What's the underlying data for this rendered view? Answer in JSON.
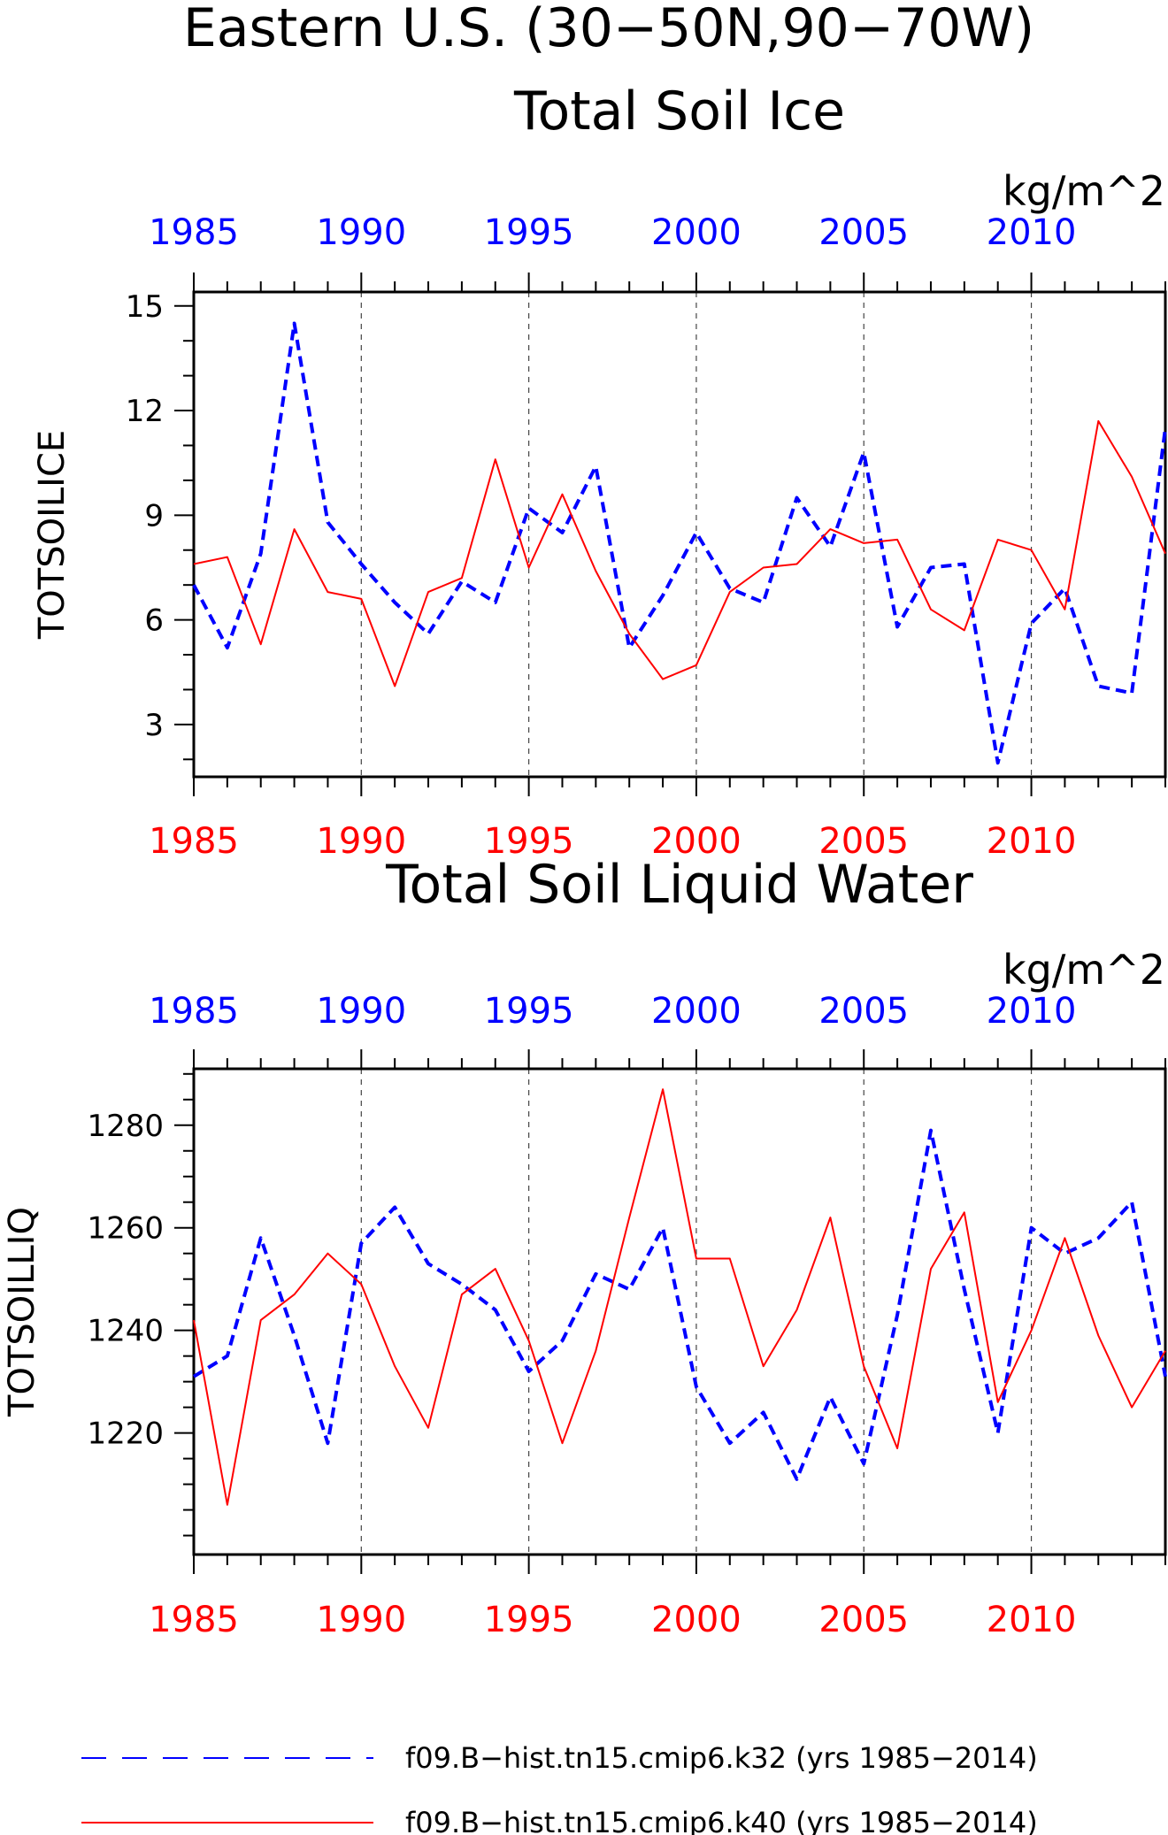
{
  "figure": {
    "title_line1": "Eastern U.S. (30−50N,90−70W)",
    "legend": [
      {
        "label": "f09.B−hist.tn15.cmip6.k32 (yrs 1985−2014)",
        "color": "#0000ff",
        "style": "dashed"
      },
      {
        "label": "f09.B−hist.tn15.cmip6.k40 (yrs 1985−2014)",
        "color": "#ff0000",
        "style": "solid"
      }
    ]
  },
  "chart_data": [
    {
      "type": "line",
      "title": "Total Soil Ice",
      "units": "kg/m^2",
      "ylabel": "TOTSOILICE",
      "x": [
        1985,
        1986,
        1987,
        1988,
        1989,
        1990,
        1991,
        1992,
        1993,
        1994,
        1995,
        1996,
        1997,
        1998,
        1999,
        2000,
        2001,
        2002,
        2003,
        2004,
        2005,
        2006,
        2007,
        2008,
        2009,
        2010,
        2011,
        2012,
        2013,
        2014
      ],
      "xlim": [
        1985,
        2014
      ],
      "xticks": [
        "1985",
        "1990",
        "1995",
        "2000",
        "2005",
        "2010"
      ],
      "ylim": [
        1.5,
        15.4
      ],
      "yticks": [
        "3",
        "6",
        "9",
        "12",
        "15"
      ],
      "grid": "vertical dashed at major x ticks",
      "series": [
        {
          "name": "f09.B−hist.tn15.cmip6.k32 (yrs 1985−2014)",
          "color": "#0000ff",
          "style": "dashed",
          "values": [
            7.0,
            5.2,
            7.9,
            14.5,
            8.8,
            7.6,
            6.5,
            5.6,
            7.1,
            6.5,
            9.2,
            8.5,
            10.4,
            5.2,
            6.7,
            8.5,
            6.9,
            6.5,
            9.5,
            8.1,
            10.8,
            5.8,
            7.5,
            7.6,
            1.9,
            5.9,
            6.9,
            4.1,
            3.9,
            11.5
          ]
        },
        {
          "name": "f09.B−hist.tn15.cmip6.k40 (yrs 1985−2014)",
          "color": "#ff0000",
          "style": "solid",
          "values": [
            7.6,
            7.8,
            5.3,
            8.6,
            6.8,
            6.6,
            4.1,
            6.8,
            7.2,
            10.6,
            7.5,
            9.6,
            7.4,
            5.6,
            4.3,
            4.7,
            6.8,
            7.5,
            7.6,
            8.6,
            8.2,
            8.3,
            6.3,
            5.7,
            8.3,
            8.0,
            6.3,
            11.7,
            10.1,
            7.9
          ]
        }
      ]
    },
    {
      "type": "line",
      "title": "Total Soil Liquid Water",
      "units": "kg/m^2",
      "ylabel": "TOTSOILLIQ",
      "x": [
        1985,
        1986,
        1987,
        1988,
        1989,
        1990,
        1991,
        1992,
        1993,
        1994,
        1995,
        1996,
        1997,
        1998,
        1999,
        2000,
        2001,
        2002,
        2003,
        2004,
        2005,
        2006,
        2007,
        2008,
        2009,
        2010,
        2011,
        2012,
        2013,
        2014
      ],
      "xlim": [
        1985,
        2014
      ],
      "xticks": [
        "1985",
        "1990",
        "1995",
        "2000",
        "2005",
        "2010"
      ],
      "ylim": [
        1196.3,
        1291
      ],
      "yticks": [
        "1220",
        "1240",
        "1260",
        "1280"
      ],
      "grid": "vertical dashed at major x ticks",
      "series": [
        {
          "name": "f09.B−hist.tn15.cmip6.k32 (yrs 1985−2014)",
          "color": "#0000ff",
          "style": "dashed",
          "values": [
            1231,
            1235,
            1258,
            1239,
            1218,
            1257,
            1264,
            1253,
            1249,
            1244,
            1232,
            1238,
            1251,
            1248,
            1260,
            1229,
            1218,
            1224,
            1211,
            1227,
            1214,
            1243,
            1279,
            1248,
            1220,
            1260,
            1255,
            1258,
            1265,
            1231
          ]
        },
        {
          "name": "f09.B−hist.tn15.cmip6.k40 (yrs 1985−2014)",
          "color": "#ff0000",
          "style": "solid",
          "values": [
            1242,
            1206,
            1242,
            1247,
            1255,
            1249,
            1233,
            1221,
            1247,
            1252,
            1238,
            1218,
            1236,
            1262,
            1287,
            1254,
            1254,
            1233,
            1244,
            1262,
            1233,
            1217,
            1252,
            1263,
            1226,
            1240,
            1258,
            1239,
            1225,
            1236
          ]
        }
      ]
    }
  ]
}
